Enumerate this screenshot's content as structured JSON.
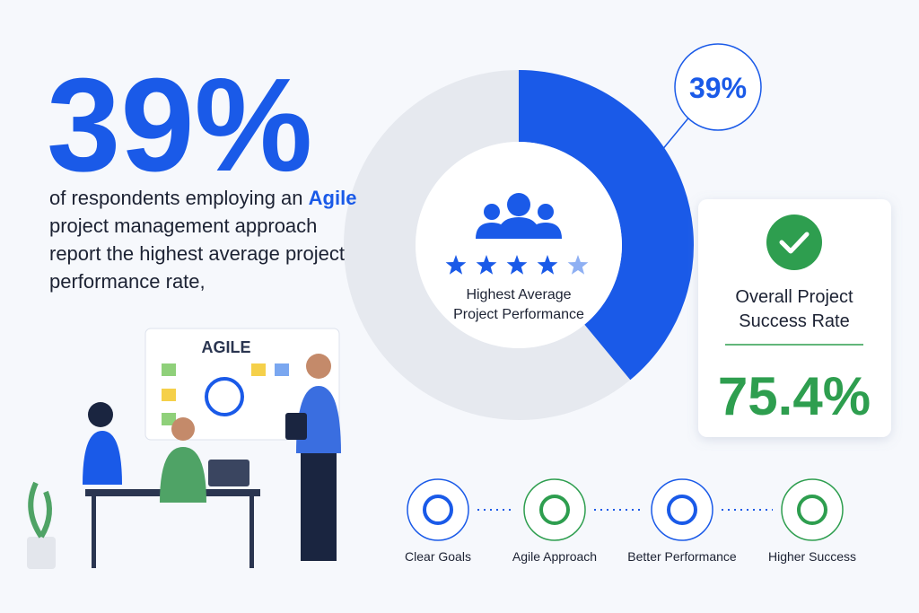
{
  "headline": {
    "value": 39,
    "label": "39%"
  },
  "description": [
    "of respondents employing an ",
    "Agile",
    " project management approach report the highest average project performance rate,"
  ],
  "donut": {
    "center_label": "Highest Average Project Performance",
    "color": "#1a5ae8",
    "track_color": "#e6e9ef"
  },
  "card": {
    "title": "Overall Project Success Rate",
    "value": 75.4,
    "label": "75.4%"
  },
  "illustration": {
    "board_title": "AGILE"
  },
  "steps": [
    "Clear Goals",
    "Agile Approach",
    "Better Performance",
    "Higher Success"
  ]
}
